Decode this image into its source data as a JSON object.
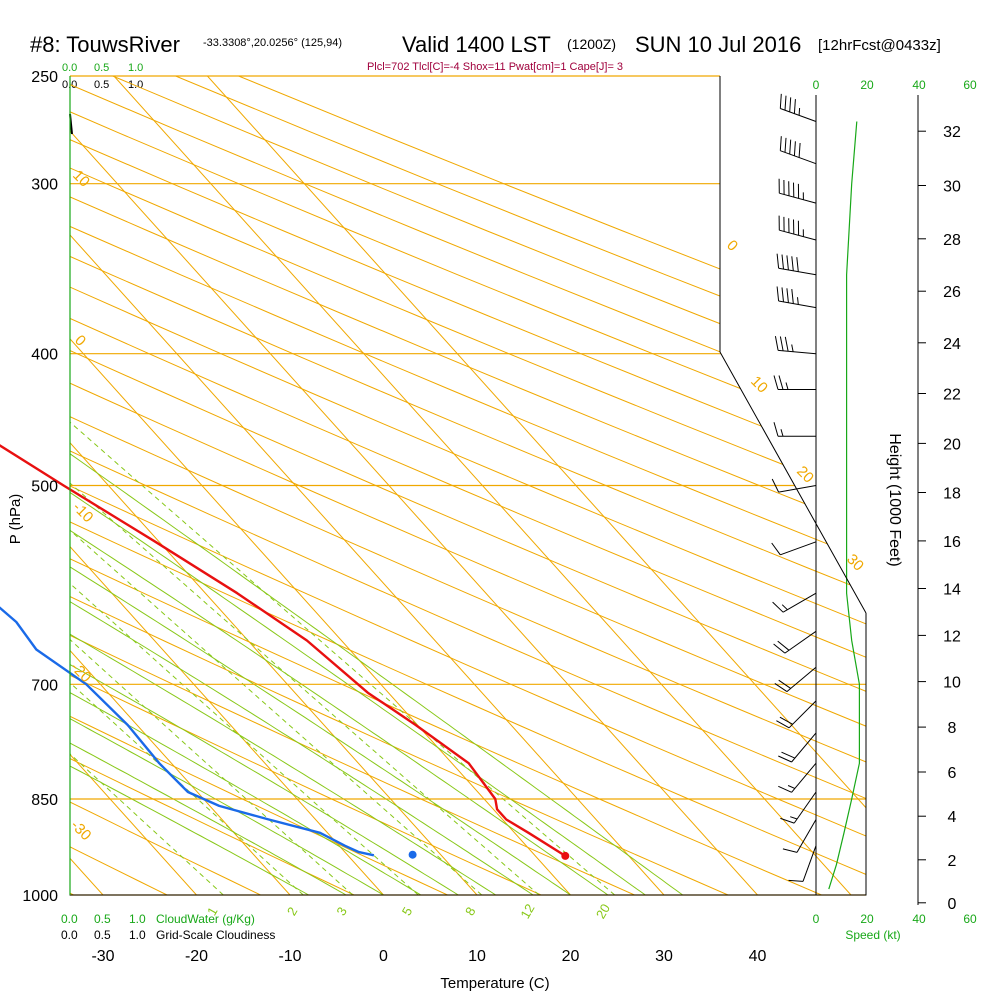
{
  "header": {
    "station": "#8: TouwsRiver",
    "coords": "-33.3308°,20.0256° (125,94)",
    "valid": "Valid 1400 LST",
    "zulu": "(1200Z)",
    "date": "SUN 10 Jul 2016",
    "forecast": "[12hrFcst@0433z]"
  },
  "indices": "Plcl=702 Tlcl[C]=-4 Shox=11 Pwat[cm]=1 Cape[J]= 3",
  "colors": {
    "grid": "#f0a800",
    "dry_adiabat": "#f0a800",
    "moist_adiabat": "#88c818",
    "mixing_ratio": "#88c818",
    "temperature": "#e81010",
    "dewpoint": "#1a6ae8",
    "scale_green": "#18a818",
    "indices": "#a0003c",
    "barb": "#000000"
  },
  "top_scales": {
    "cloudwater_ticks": [
      "0.0",
      "0.5",
      "1.0"
    ],
    "cloudiness_ticks": [
      "0.0",
      "0.5",
      "1.0"
    ],
    "speed_ticks": [
      "0",
      "20",
      "40",
      "60"
    ]
  },
  "bottom_scales": {
    "cloudwater_ticks": [
      "0.0",
      "0.5",
      "1.0"
    ],
    "cloudwater_label": "CloudWater (g/Kg)",
    "cloudiness_ticks": [
      "0.0",
      "0.5",
      "1.0"
    ],
    "cloudiness_label": "Grid-Scale Cloudiness",
    "speed_ticks": [
      "0",
      "20",
      "40",
      "60"
    ],
    "speed_label": "Speed (kt)"
  },
  "chart_data": {
    "type": "line",
    "subtype": "skew-T log-P sounding",
    "xlabel": "Temperature (C)",
    "ylabel": "P (hPa)",
    "y2label": "Height (1000 Feet)",
    "x_ticks": [
      -30,
      -20,
      -10,
      0,
      10,
      20,
      30,
      40
    ],
    "xlim": [
      -34,
      45
    ],
    "p_ticks": [
      250,
      300,
      400,
      500,
      700,
      850,
      1000
    ],
    "plim": [
      1000,
      250
    ],
    "height_ticks": [
      0,
      2,
      4,
      6,
      8,
      10,
      12,
      14,
      16,
      18,
      20,
      22,
      24,
      26,
      28,
      30,
      32
    ],
    "dry_adiabat_labels": [
      "10",
      "0",
      "-10",
      "-20",
      "-30",
      "0",
      "10",
      "20",
      "30"
    ],
    "mixing_ratio_labels": [
      "1",
      "2",
      "3",
      "5",
      "8",
      "12",
      "20"
    ],
    "series": [
      {
        "name": "Temperature",
        "p": [
          936,
          900,
          880,
          865,
          850,
          800,
          750,
          710,
          650,
          600,
          550,
          500,
          450,
          400,
          350,
          300,
          265
        ],
        "t": [
          23.2,
          21.5,
          20.4,
          20.4,
          21.2,
          21.8,
          19.8,
          17.8,
          16.3,
          13.4,
          9.6,
          5.2,
          0.6,
          -4.8,
          -10.8,
          -18.2,
          -24.5
        ]
      },
      {
        "name": "Dewpoint",
        "p": [
          935,
          930,
          920,
          900,
          880,
          860,
          840,
          800,
          750,
          700,
          660,
          630,
          600,
          560,
          530,
          500,
          475,
          445,
          400,
          370,
          350,
          320,
          300,
          285,
          265
        ],
        "t": [
          2.8,
          1.5,
          0.6,
          -0.8,
          -5.0,
          -9.0,
          -11.0,
          -11.3,
          -11.0,
          -11.5,
          -13.5,
          -13.0,
          -13.8,
          -16.5,
          -19.2,
          -24.6,
          -29.3,
          -35.5,
          -41.8,
          -44.5,
          -46.2,
          -47.8,
          -51.0,
          -53.5,
          -57.0
        ]
      }
    ],
    "surface_points": [
      {
        "name": "surface temperature",
        "p": 936,
        "t": 23.2
      },
      {
        "name": "surface dewpoint",
        "p": 934,
        "t": 7.0
      }
    ],
    "cloudwater": [],
    "wind_speed_kt": {
      "p": [
        990,
        950,
        900,
        850,
        800,
        750,
        700,
        650,
        600,
        550,
        500,
        450,
        400,
        350,
        300,
        270
      ],
      "speed": [
        5,
        8,
        11,
        14,
        17,
        17,
        17,
        14,
        12,
        12,
        12,
        12,
        12,
        12,
        14,
        16
      ]
    },
    "wind_barbs": [
      {
        "p": 270,
        "dir": 290,
        "speed": 45
      },
      {
        "p": 290,
        "dir": 290,
        "speed": 50
      },
      {
        "p": 310,
        "dir": 285,
        "speed": 55
      },
      {
        "p": 330,
        "dir": 285,
        "speed": 55
      },
      {
        "p": 350,
        "dir": 280,
        "speed": 50
      },
      {
        "p": 370,
        "dir": 280,
        "speed": 45
      },
      {
        "p": 400,
        "dir": 275,
        "speed": 35
      },
      {
        "p": 425,
        "dir": 270,
        "speed": 25
      },
      {
        "p": 460,
        "dir": 270,
        "speed": 15
      },
      {
        "p": 500,
        "dir": 260,
        "speed": 10
      },
      {
        "p": 550,
        "dir": 250,
        "speed": 10
      },
      {
        "p": 600,
        "dir": 240,
        "speed": 15
      },
      {
        "p": 640,
        "dir": 235,
        "speed": 20
      },
      {
        "p": 680,
        "dir": 230,
        "speed": 20
      },
      {
        "p": 720,
        "dir": 225,
        "speed": 20
      },
      {
        "p": 760,
        "dir": 220,
        "speed": 20
      },
      {
        "p": 800,
        "dir": 220,
        "speed": 15
      },
      {
        "p": 840,
        "dir": 215,
        "speed": 15
      },
      {
        "p": 880,
        "dir": 210,
        "speed": 10
      },
      {
        "p": 920,
        "dir": 200,
        "speed": 10
      }
    ]
  }
}
